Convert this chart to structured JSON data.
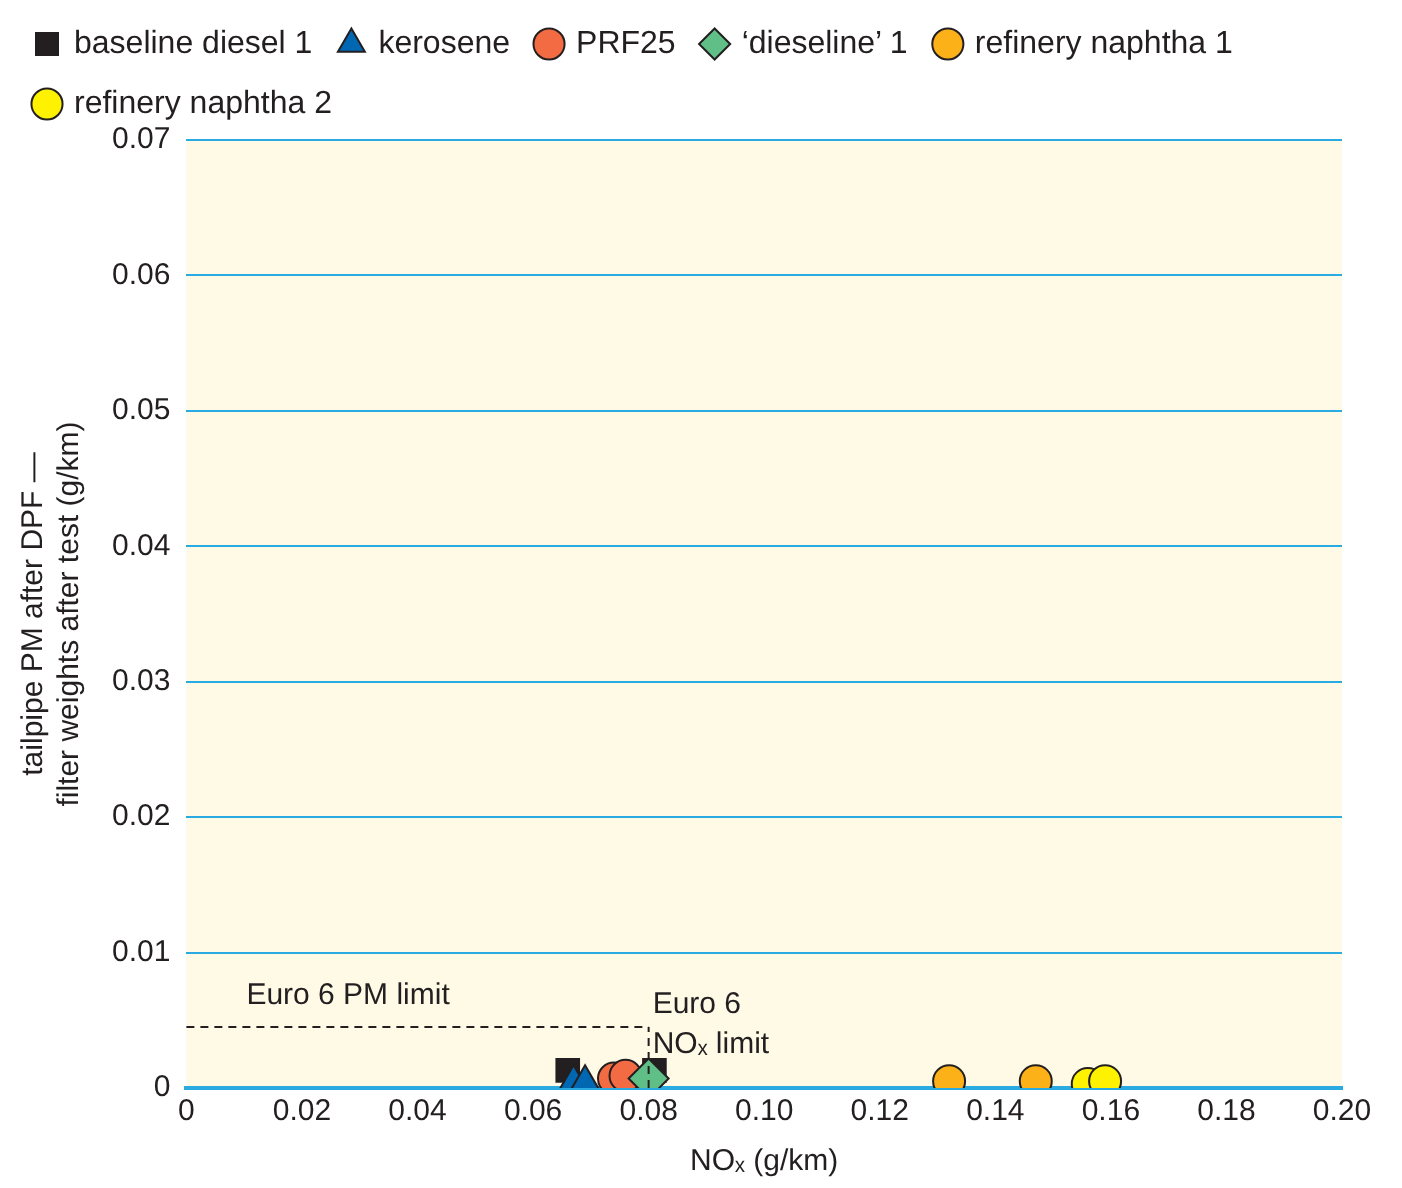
{
  "chart_data": {
    "type": "scatter",
    "xlabel": "NOₓ (g/km)",
    "ylabel": "tailpipe PM after DPF —\nfilter weights after test (g/km)",
    "xlim": [
      0,
      0.2
    ],
    "xticks": [
      0,
      0.02,
      0.04,
      0.06,
      0.08,
      {
        "value": 0.1,
        "label": "0.10"
      },
      0.12,
      0.14,
      0.16,
      0.18,
      {
        "value": 0.2,
        "label": "0.20"
      }
    ],
    "ylim": [
      0,
      0.07
    ],
    "yticks": [
      0,
      0.01,
      0.02,
      0.03,
      0.04,
      0.05,
      0.06,
      0.07
    ],
    "grid": "y",
    "legend": "top left",
    "series": [
      {
        "name": "baseline diesel 1",
        "color": "#231f20",
        "marker": "square",
        "x": [
          0.066,
          0.081
        ],
        "values": [
          0.0013,
          0.0013
        ]
      },
      {
        "name": "kerosene",
        "color": "#0068b3",
        "marker": "triangle",
        "x": [
          0.067,
          0.069
        ],
        "values": [
          0.0005,
          0.0005
        ]
      },
      {
        "name": "PRF25",
        "color": "#f26b43",
        "marker": "circle",
        "x": [
          0.074,
          0.076
        ],
        "values": [
          0.0007,
          0.0009
        ]
      },
      {
        "name": "‘dieseline’ 1",
        "color": "#5fbf86",
        "marker": "diamond",
        "x": [
          0.08
        ],
        "values": [
          0.0007
        ]
      },
      {
        "name": "refinery naphtha 1",
        "color": "#fbb117",
        "marker": "circle",
        "x": [
          0.132,
          0.147
        ],
        "values": [
          0.0005,
          0.0005
        ]
      },
      {
        "name": "refinery naphtha 2",
        "color": "#fff200",
        "marker": "circle",
        "x": [
          0.156,
          0.159
        ],
        "values": [
          0.0003,
          0.0005
        ]
      }
    ],
    "ref_lines": [
      {
        "axis": "y",
        "value": 0.0045,
        "label": "Euro 6 PM limit",
        "line_style": "dashed"
      },
      {
        "axis": "x",
        "value": 0.08,
        "label": "Euro 6\nNOₓ limit",
        "line_style": "dashed"
      }
    ]
  }
}
